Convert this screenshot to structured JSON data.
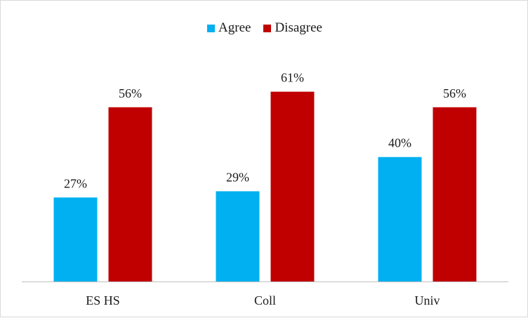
{
  "chart_data": {
    "type": "bar",
    "title": "",
    "xlabel": "",
    "ylabel": "",
    "categories": [
      "ES HS",
      "Coll",
      "Univ"
    ],
    "series": [
      {
        "name": "Agree",
        "values": [
          27,
          29,
          40
        ],
        "color": "#00b0f0"
      },
      {
        "name": "Disagree",
        "values": [
          56,
          61,
          56
        ],
        "color": "#c00000"
      }
    ],
    "value_suffix": "%",
    "ylim": [
      0,
      74
    ],
    "grid": false,
    "legend_position": "top"
  }
}
